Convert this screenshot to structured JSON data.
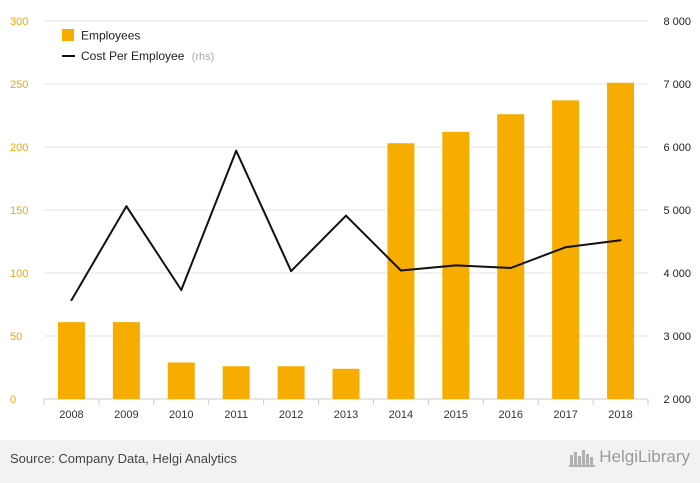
{
  "chart_data": {
    "type": "bar+line",
    "categories": [
      "2008",
      "2009",
      "2010",
      "2011",
      "2012",
      "2013",
      "2014",
      "2015",
      "2016",
      "2017",
      "2018"
    ],
    "series": [
      {
        "name": "Employees",
        "type": "bar",
        "axis": "left",
        "color": "#f7ac00",
        "values": [
          61,
          61,
          29,
          26,
          26,
          24,
          203,
          212,
          226,
          237,
          251
        ]
      },
      {
        "name": "Cost Per Employee",
        "name_note": "(rhs)",
        "type": "line",
        "axis": "right",
        "color": "#111111",
        "values": [
          3570,
          5060,
          3730,
          5940,
          4030,
          4910,
          4040,
          4120,
          4080,
          4410,
          4520
        ]
      }
    ],
    "y_left": {
      "ticks": [
        0,
        50,
        100,
        150,
        200,
        250,
        300
      ],
      "tick_labels": [
        "0",
        "50",
        "100",
        "150",
        "200",
        "250",
        "300"
      ],
      "range": [
        0,
        300
      ],
      "color": "#f0a500"
    },
    "y_right": {
      "ticks": [
        2000,
        3000,
        4000,
        5000,
        6000,
        7000,
        8000
      ],
      "tick_labels": [
        "2 000",
        "3 000",
        "4 000",
        "5 000",
        "6 000",
        "7 000",
        "8 000"
      ],
      "range": [
        2000,
        8000
      ],
      "color": "#222222"
    },
    "grid": true,
    "legend": "top-left"
  },
  "footer": {
    "source": "Source: Company Data, Helgi Analytics",
    "brand": "HelgiLibrary"
  }
}
